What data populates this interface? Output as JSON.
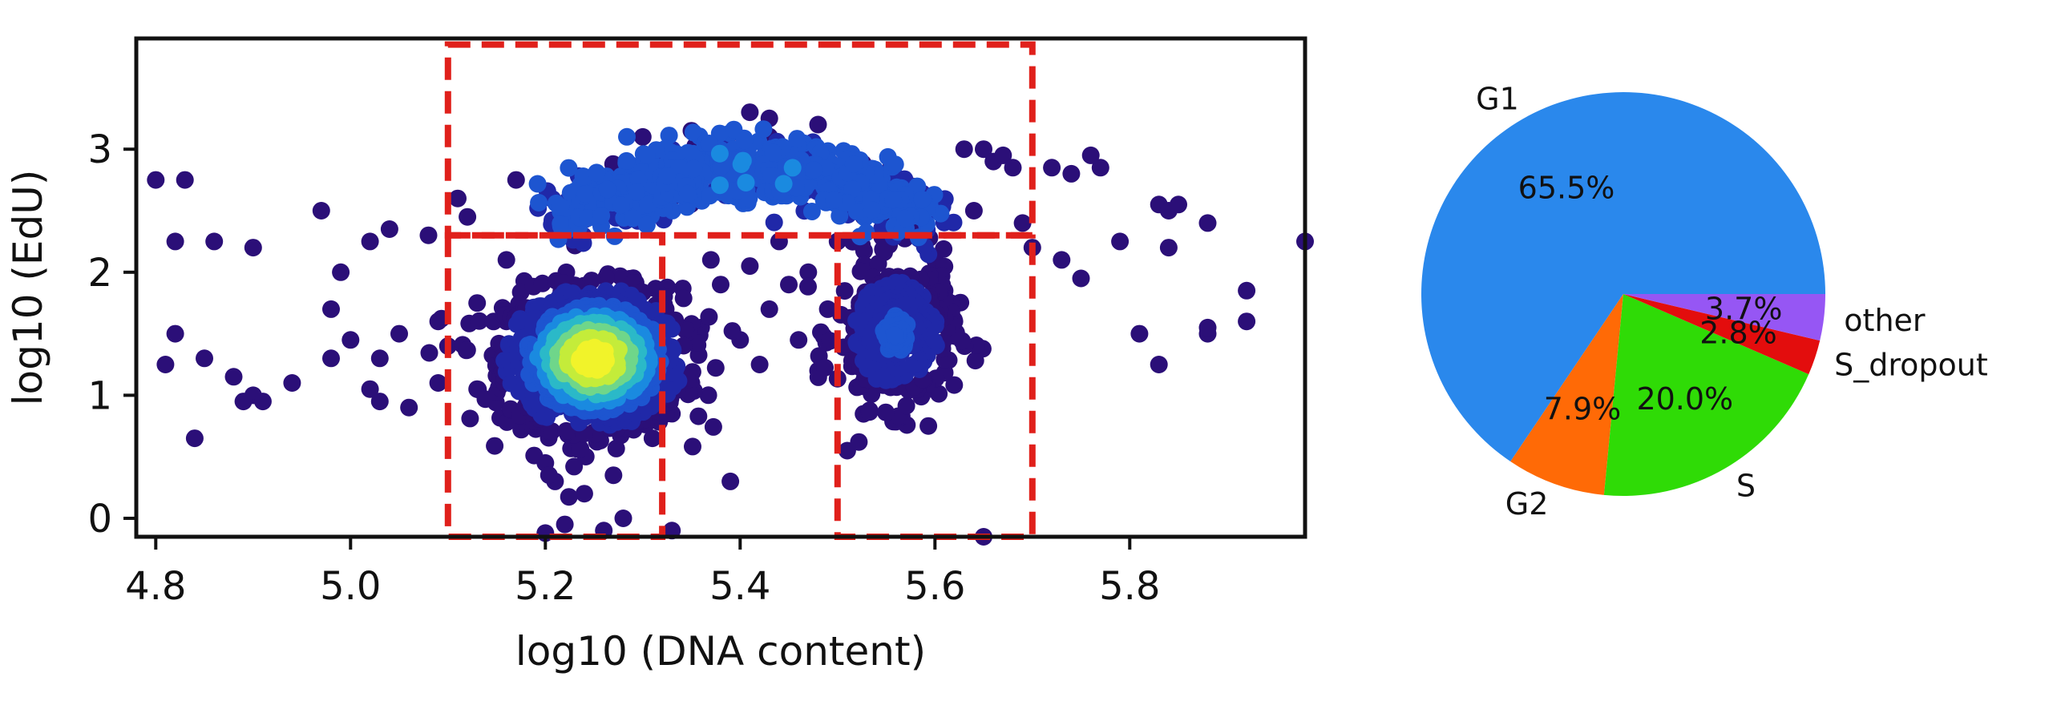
{
  "chart_data": [
    {
      "type": "scatter",
      "title": "",
      "xlabel": "log10 (DNA content)",
      "ylabel": "log10 (EdU)",
      "xlim": [
        4.78,
        5.98
      ],
      "ylim": [
        -0.15,
        3.9
      ],
      "xticks": [
        4.8,
        5.0,
        5.2,
        5.4,
        5.6,
        5.8
      ],
      "xtick_labels": [
        "4.8",
        "5.0",
        "5.2",
        "5.4",
        "5.6",
        "5.8"
      ],
      "yticks": [
        0,
        1,
        2,
        3
      ],
      "ytick_labels": [
        "0",
        "1",
        "2",
        "3"
      ],
      "grid": false,
      "colormap": "density (navy → blue → cyan → yellow)",
      "gates": [
        {
          "name": "S",
          "x": [
            5.1,
            5.7
          ],
          "y": [
            2.3,
            3.85
          ]
        },
        {
          "name": "G1",
          "x": [
            5.1,
            5.32
          ],
          "y": [
            -0.15,
            2.3
          ]
        },
        {
          "name": "G2",
          "x": [
            5.5,
            5.7
          ],
          "y": [
            -0.15,
            2.3
          ]
        }
      ],
      "gate_color": "#e0201b",
      "clusters": [
        {
          "cx": 5.25,
          "cy": 1.3,
          "sx": 0.045,
          "sy": 0.28,
          "n": 1100,
          "density": 1.0
        },
        {
          "cx": 5.56,
          "cy": 1.5,
          "sx": 0.03,
          "sy": 0.3,
          "n": 320,
          "density": 0.25
        },
        {
          "arc_x": [
            5.22,
            5.6
          ],
          "arc_y": [
            2.45,
            2.85
          ],
          "n": 700,
          "density": 0.3
        }
      ],
      "sparse_points": [
        [
          4.8,
          2.75
        ],
        [
          4.82,
          2.25
        ],
        [
          4.83,
          2.75
        ],
        [
          4.82,
          1.5
        ],
        [
          4.81,
          1.25
        ],
        [
          4.84,
          0.65
        ],
        [
          4.85,
          1.3
        ],
        [
          4.86,
          2.25
        ],
        [
          4.88,
          1.15
        ],
        [
          4.9,
          2.2
        ],
        [
          4.9,
          1.0
        ],
        [
          4.91,
          0.95
        ],
        [
          4.89,
          0.95
        ],
        [
          4.94,
          1.1
        ],
        [
          4.97,
          2.5
        ],
        [
          4.98,
          1.7
        ],
        [
          4.98,
          1.3
        ],
        [
          4.99,
          2.0
        ],
        [
          5.0,
          1.45
        ],
        [
          5.02,
          1.05
        ],
        [
          5.03,
          1.3
        ],
        [
          5.02,
          2.25
        ],
        [
          5.04,
          2.35
        ],
        [
          5.05,
          1.5
        ],
        [
          5.03,
          0.95
        ],
        [
          5.06,
          0.9
        ],
        [
          5.08,
          2.3
        ],
        [
          5.09,
          1.1
        ],
        [
          5.09,
          1.6
        ],
        [
          5.1,
          1.4
        ],
        [
          5.11,
          2.6
        ],
        [
          5.12,
          2.45
        ],
        [
          5.13,
          1.05
        ],
        [
          5.13,
          1.75
        ],
        [
          5.15,
          1.3
        ],
        [
          5.16,
          2.1
        ],
        [
          5.17,
          2.75
        ],
        [
          5.16,
          1.6
        ],
        [
          5.18,
          1.0
        ],
        [
          5.2,
          0.45
        ],
        [
          5.21,
          0.3
        ],
        [
          5.23,
          0.6
        ],
        [
          5.24,
          0.2
        ],
        [
          5.25,
          0.7
        ],
        [
          5.27,
          0.35
        ],
        [
          5.28,
          0.0
        ],
        [
          5.22,
          -0.05
        ],
        [
          5.26,
          -0.1
        ],
        [
          5.2,
          -0.12
        ],
        [
          5.3,
          0.9
        ],
        [
          5.31,
          0.65
        ],
        [
          5.33,
          0.85
        ],
        [
          5.33,
          -0.1
        ],
        [
          5.35,
          1.1
        ],
        [
          5.36,
          1.55
        ],
        [
          5.37,
          2.1
        ],
        [
          5.38,
          1.9
        ],
        [
          5.39,
          0.3
        ],
        [
          5.4,
          1.45
        ],
        [
          5.41,
          2.05
        ],
        [
          5.42,
          1.25
        ],
        [
          5.43,
          1.7
        ],
        [
          5.44,
          2.25
        ],
        [
          5.45,
          1.9
        ],
        [
          5.46,
          1.45
        ],
        [
          5.47,
          2.0
        ],
        [
          5.48,
          1.2
        ],
        [
          5.49,
          1.7
        ],
        [
          5.5,
          2.25
        ],
        [
          5.51,
          0.55
        ],
        [
          5.53,
          1.3
        ],
        [
          5.6,
          2.1
        ],
        [
          5.61,
          1.85
        ],
        [
          5.62,
          1.6
        ],
        [
          5.63,
          3.0
        ],
        [
          5.65,
          3.0
        ],
        [
          5.64,
          2.5
        ],
        [
          5.66,
          2.9
        ],
        [
          5.67,
          2.95
        ],
        [
          5.68,
          2.85
        ],
        [
          5.69,
          2.4
        ],
        [
          5.65,
          -0.15
        ],
        [
          5.7,
          2.2
        ],
        [
          5.72,
          2.85
        ],
        [
          5.73,
          2.1
        ],
        [
          5.74,
          2.8
        ],
        [
          5.76,
          2.95
        ],
        [
          5.75,
          1.95
        ],
        [
          5.77,
          2.85
        ],
        [
          5.79,
          2.25
        ],
        [
          5.81,
          1.5
        ],
        [
          5.83,
          1.25
        ],
        [
          5.83,
          2.55
        ],
        [
          5.84,
          2.5
        ],
        [
          5.85,
          2.55
        ],
        [
          5.84,
          2.2
        ],
        [
          5.88,
          2.4
        ],
        [
          5.88,
          1.5
        ],
        [
          5.88,
          1.55
        ],
        [
          5.92,
          1.85
        ],
        [
          5.92,
          1.6
        ],
        [
          5.98,
          2.25
        ],
        [
          5.48,
          3.2
        ],
        [
          5.41,
          3.3
        ],
        [
          5.43,
          3.25
        ],
        [
          5.35,
          3.15
        ],
        [
          5.3,
          3.1
        ]
      ]
    },
    {
      "type": "pie",
      "title": "",
      "labels": [
        "G1",
        "G2",
        "S",
        "S_dropout",
        "other"
      ],
      "values": [
        65.5,
        7.9,
        20.0,
        2.8,
        3.7
      ],
      "percent_labels": [
        "65.5%",
        "7.9%",
        "20.0%",
        "2.8%",
        "3.7%"
      ],
      "colors": [
        "#2a88ec",
        "#ff6a06",
        "#2fdb06",
        "#e30d0d",
        "#9656f4"
      ],
      "start_angle_deg": 0,
      "direction": "counterclockwise"
    }
  ]
}
